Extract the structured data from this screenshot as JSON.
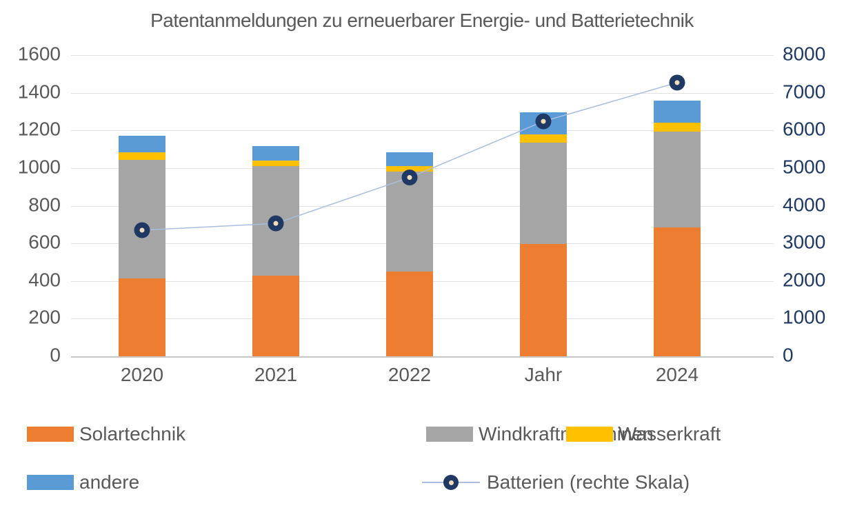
{
  "title": "Patentanmeldungen zu erneuerbarer Energie- und Batterietechnik",
  "chart_data": {
    "type": "bar",
    "subtype": "stacked-bar-with-line-overlay",
    "title": "Patentanmeldungen zu erneuerbarer Energie- und Batterietechnik",
    "categories": [
      "2020",
      "2021",
      "2022",
      "Jahr",
      "2024"
    ],
    "series": [
      {
        "name": "Solartechnik",
        "type": "bar",
        "axis": "left",
        "color": "#ED7D31",
        "values": [
          415,
          430,
          450,
          595,
          685
        ]
      },
      {
        "name": "Windkraftmaschinen",
        "type": "bar",
        "axis": "left",
        "color": "#A5A5A5",
        "values": [
          630,
          580,
          530,
          540,
          510
        ]
      },
      {
        "name": "Wasserkraft",
        "type": "bar",
        "axis": "left",
        "color": "#FFC000",
        "values": [
          40,
          30,
          30,
          45,
          45
        ]
      },
      {
        "name": "andere",
        "type": "bar",
        "axis": "left",
        "color": "#5B9BD5",
        "values": [
          85,
          75,
          75,
          115,
          120
        ]
      },
      {
        "name": "Batterien (rechte Skala)",
        "type": "line",
        "axis": "right",
        "color": "#1F3864",
        "line_color": "#A9BDE0",
        "marker_center_color": "#F1DDB9",
        "values": [
          3350,
          3530,
          4750,
          6240,
          7270
        ]
      }
    ],
    "left_axis": {
      "min": 0,
      "max": 1600,
      "step": 200,
      "tick_labels": [
        "0",
        "200",
        "400",
        "600",
        "800",
        "1000",
        "1200",
        "1400",
        "1600"
      ],
      "color": "#595959"
    },
    "right_axis": {
      "min": 0,
      "max": 8000,
      "step": 1000,
      "tick_labels": [
        "0",
        "1000",
        "2000",
        "3000",
        "4000",
        "5000",
        "6000",
        "7000",
        "8000"
      ],
      "color": "#1F3864"
    },
    "grid": true,
    "gridline_color": "#E2E2E2",
    "axis_line_color": "#C9C7C7",
    "text_color": "#595959",
    "legend_position": "bottom"
  }
}
